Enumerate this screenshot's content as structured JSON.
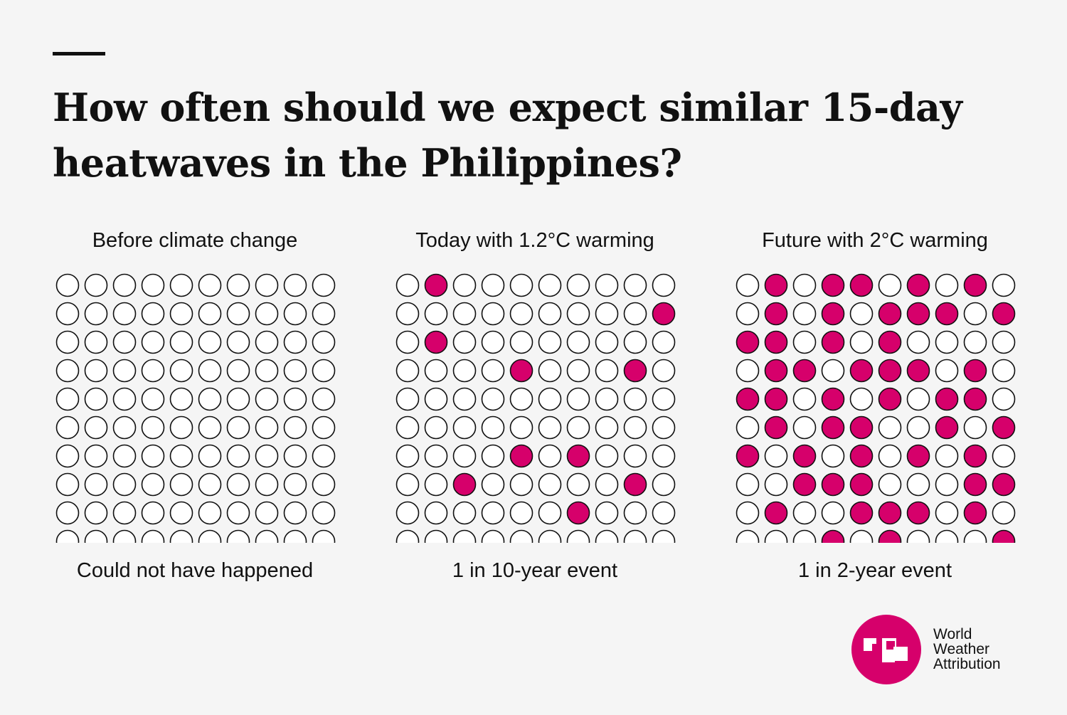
{
  "title": "How often should we expect similar 15-day\nheatwaves in the Philippines?",
  "colors": {
    "highlight": "#d6006b",
    "empty": "#ffffff",
    "stroke": "#111111",
    "background": "#f5f5f5"
  },
  "chart_data": [
    {
      "type": "waffle",
      "title": "Before climate change",
      "caption": "Could not have happened",
      "rows": 10,
      "cols": 10,
      "filled": []
    },
    {
      "type": "waffle",
      "title": "Today with 1.2°C warming",
      "caption": "1 in 10-year event",
      "rows": 10,
      "cols": 10,
      "filled": [
        [
          0,
          1
        ],
        [
          1,
          9
        ],
        [
          2,
          1
        ],
        [
          3,
          4
        ],
        [
          3,
          8
        ],
        [
          6,
          4
        ],
        [
          6,
          6
        ],
        [
          7,
          2
        ],
        [
          7,
          8
        ],
        [
          8,
          6
        ]
      ]
    },
    {
      "type": "waffle",
      "title": "Future with 2°C warming",
      "caption": "1 in 2-year event",
      "rows": 10,
      "cols": 10,
      "filled": [
        [
          0,
          1
        ],
        [
          0,
          3
        ],
        [
          0,
          4
        ],
        [
          0,
          6
        ],
        [
          0,
          8
        ],
        [
          1,
          1
        ],
        [
          1,
          3
        ],
        [
          1,
          5
        ],
        [
          1,
          6
        ],
        [
          1,
          7
        ],
        [
          1,
          9
        ],
        [
          2,
          0
        ],
        [
          2,
          1
        ],
        [
          2,
          3
        ],
        [
          2,
          5
        ],
        [
          3,
          1
        ],
        [
          3,
          2
        ],
        [
          3,
          4
        ],
        [
          3,
          5
        ],
        [
          3,
          6
        ],
        [
          3,
          8
        ],
        [
          4,
          0
        ],
        [
          4,
          1
        ],
        [
          4,
          3
        ],
        [
          4,
          5
        ],
        [
          4,
          7
        ],
        [
          4,
          8
        ],
        [
          5,
          1
        ],
        [
          5,
          3
        ],
        [
          5,
          4
        ],
        [
          5,
          7
        ],
        [
          5,
          9
        ],
        [
          6,
          0
        ],
        [
          6,
          2
        ],
        [
          6,
          4
        ],
        [
          6,
          6
        ],
        [
          6,
          8
        ],
        [
          7,
          2
        ],
        [
          7,
          3
        ],
        [
          7,
          4
        ],
        [
          7,
          8
        ],
        [
          7,
          9
        ],
        [
          8,
          1
        ],
        [
          8,
          4
        ],
        [
          8,
          5
        ],
        [
          8,
          6
        ],
        [
          8,
          8
        ],
        [
          9,
          3
        ],
        [
          9,
          5
        ],
        [
          9,
          9
        ]
      ]
    }
  ],
  "logo": {
    "lines": [
      "World",
      "Weather",
      "Attribution"
    ]
  }
}
